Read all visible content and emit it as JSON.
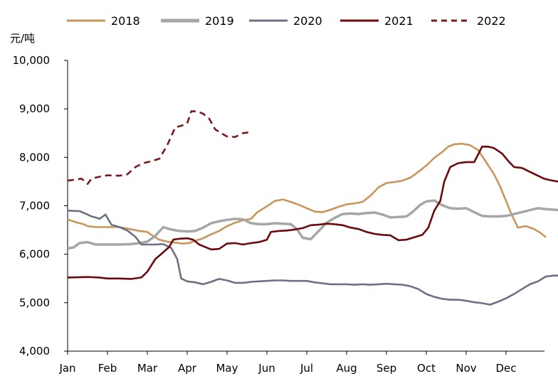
{
  "chart_data": {
    "type": "line",
    "unit_label": "元/吨",
    "x_ticks": [
      "Jan",
      "Feb",
      "Mar",
      "Apr",
      "May",
      "Jun",
      "Jul",
      "Aug",
      "Sep",
      "Oct",
      "Nov",
      "Dec"
    ],
    "y_ticks": [
      "4,000",
      "5,000",
      "6,000",
      "7,000",
      "8,000",
      "9,000",
      "10,000"
    ],
    "ylim": [
      4000,
      10000
    ],
    "xlim": [
      0,
      12
    ],
    "legend_position": "top",
    "grid": false,
    "series": [
      {
        "name": "2018",
        "color": "#C8955A",
        "dashed": false,
        "points": [
          [
            0,
            6720
          ],
          [
            0.25,
            6650
          ],
          [
            0.4,
            6620
          ],
          [
            0.5,
            6580
          ],
          [
            0.7,
            6560
          ],
          [
            1.0,
            6560
          ],
          [
            1.3,
            6560
          ],
          [
            1.55,
            6520
          ],
          [
            1.8,
            6480
          ],
          [
            2.0,
            6460
          ],
          [
            2.1,
            6400
          ],
          [
            2.3,
            6300
          ],
          [
            2.5,
            6260
          ],
          [
            2.7,
            6240
          ],
          [
            2.9,
            6220
          ],
          [
            3.05,
            6230
          ],
          [
            3.2,
            6280
          ],
          [
            3.4,
            6330
          ],
          [
            3.6,
            6410
          ],
          [
            3.8,
            6480
          ],
          [
            4.0,
            6580
          ],
          [
            4.2,
            6650
          ],
          [
            4.4,
            6700
          ],
          [
            4.6,
            6730
          ],
          [
            4.75,
            6860
          ],
          [
            5.0,
            6990
          ],
          [
            5.2,
            7100
          ],
          [
            5.4,
            7130
          ],
          [
            5.6,
            7080
          ],
          [
            5.8,
            7020
          ],
          [
            6.0,
            6950
          ],
          [
            6.2,
            6880
          ],
          [
            6.4,
            6870
          ],
          [
            6.6,
            6920
          ],
          [
            6.8,
            6980
          ],
          [
            7.0,
            7030
          ],
          [
            7.2,
            7050
          ],
          [
            7.4,
            7080
          ],
          [
            7.6,
            7210
          ],
          [
            7.8,
            7380
          ],
          [
            8.0,
            7470
          ],
          [
            8.2,
            7490
          ],
          [
            8.4,
            7520
          ],
          [
            8.6,
            7580
          ],
          [
            8.8,
            7700
          ],
          [
            9.0,
            7830
          ],
          [
            9.2,
            7990
          ],
          [
            9.4,
            8110
          ],
          [
            9.55,
            8220
          ],
          [
            9.7,
            8270
          ],
          [
            9.9,
            8280
          ],
          [
            10.1,
            8250
          ],
          [
            10.3,
            8150
          ],
          [
            10.5,
            7900
          ],
          [
            10.7,
            7650
          ],
          [
            10.85,
            7400
          ],
          [
            11.0,
            7100
          ],
          [
            11.15,
            6800
          ],
          [
            11.3,
            6550
          ],
          [
            11.5,
            6580
          ],
          [
            11.7,
            6520
          ],
          [
            11.85,
            6450
          ],
          [
            12.0,
            6350
          ]
        ]
      },
      {
        "name": "2019",
        "color": "#A6A6A6",
        "dashed": false,
        "points": [
          [
            0,
            6120
          ],
          [
            0.15,
            6140
          ],
          [
            0.3,
            6230
          ],
          [
            0.5,
            6250
          ],
          [
            0.7,
            6200
          ],
          [
            1.0,
            6200
          ],
          [
            1.3,
            6200
          ],
          [
            1.6,
            6210
          ],
          [
            1.8,
            6230
          ],
          [
            2.0,
            6260
          ],
          [
            2.2,
            6380
          ],
          [
            2.4,
            6560
          ],
          [
            2.6,
            6510
          ],
          [
            2.8,
            6480
          ],
          [
            3.0,
            6470
          ],
          [
            3.2,
            6480
          ],
          [
            3.4,
            6550
          ],
          [
            3.6,
            6640
          ],
          [
            3.8,
            6680
          ],
          [
            4.0,
            6710
          ],
          [
            4.2,
            6730
          ],
          [
            4.4,
            6720
          ],
          [
            4.6,
            6640
          ],
          [
            4.8,
            6620
          ],
          [
            5.0,
            6620
          ],
          [
            5.2,
            6640
          ],
          [
            5.4,
            6630
          ],
          [
            5.6,
            6620
          ],
          [
            5.75,
            6520
          ],
          [
            5.9,
            6340
          ],
          [
            6.1,
            6310
          ],
          [
            6.3,
            6480
          ],
          [
            6.5,
            6650
          ],
          [
            6.7,
            6750
          ],
          [
            6.9,
            6830
          ],
          [
            7.1,
            6840
          ],
          [
            7.3,
            6830
          ],
          [
            7.5,
            6850
          ],
          [
            7.7,
            6860
          ],
          [
            7.9,
            6820
          ],
          [
            8.1,
            6760
          ],
          [
            8.3,
            6770
          ],
          [
            8.5,
            6780
          ],
          [
            8.65,
            6870
          ],
          [
            8.85,
            7020
          ],
          [
            9.0,
            7090
          ],
          [
            9.2,
            7110
          ],
          [
            9.4,
            7010
          ],
          [
            9.6,
            6950
          ],
          [
            9.8,
            6940
          ],
          [
            10.0,
            6950
          ],
          [
            10.2,
            6870
          ],
          [
            10.4,
            6790
          ],
          [
            10.6,
            6780
          ],
          [
            10.8,
            6780
          ],
          [
            11.0,
            6790
          ],
          [
            11.2,
            6830
          ],
          [
            11.4,
            6870
          ],
          [
            11.6,
            6910
          ],
          [
            11.8,
            6950
          ],
          [
            12.0,
            6930
          ],
          [
            12.2,
            6920
          ],
          [
            12.5,
            6900
          ]
        ]
      },
      {
        "name": "2020",
        "color": "#6B7283",
        "dashed": false,
        "points": [
          [
            0,
            6900
          ],
          [
            0.3,
            6890
          ],
          [
            0.5,
            6820
          ],
          [
            0.6,
            6780
          ],
          [
            0.7,
            6760
          ],
          [
            0.8,
            6730
          ],
          [
            0.95,
            6820
          ],
          [
            1.1,
            6610
          ],
          [
            1.3,
            6560
          ],
          [
            1.5,
            6490
          ],
          [
            1.7,
            6360
          ],
          [
            1.85,
            6200
          ],
          [
            2.0,
            6200
          ],
          [
            2.2,
            6200
          ],
          [
            2.4,
            6210
          ],
          [
            2.6,
            6130
          ],
          [
            2.75,
            5900
          ],
          [
            2.85,
            5500
          ],
          [
            3.0,
            5440
          ],
          [
            3.2,
            5420
          ],
          [
            3.4,
            5380
          ],
          [
            3.6,
            5430
          ],
          [
            3.8,
            5490
          ],
          [
            4.0,
            5460
          ],
          [
            4.2,
            5410
          ],
          [
            4.4,
            5410
          ],
          [
            4.6,
            5430
          ],
          [
            4.8,
            5440
          ],
          [
            5.0,
            5450
          ],
          [
            5.2,
            5460
          ],
          [
            5.4,
            5460
          ],
          [
            5.6,
            5450
          ],
          [
            5.8,
            5450
          ],
          [
            6.0,
            5450
          ],
          [
            6.2,
            5420
          ],
          [
            6.4,
            5400
          ],
          [
            6.6,
            5380
          ],
          [
            6.8,
            5380
          ],
          [
            7.0,
            5380
          ],
          [
            7.2,
            5370
          ],
          [
            7.4,
            5380
          ],
          [
            7.6,
            5370
          ],
          [
            7.8,
            5380
          ],
          [
            8.0,
            5390
          ],
          [
            8.2,
            5380
          ],
          [
            8.4,
            5370
          ],
          [
            8.6,
            5340
          ],
          [
            8.8,
            5280
          ],
          [
            9.0,
            5180
          ],
          [
            9.2,
            5120
          ],
          [
            9.4,
            5080
          ],
          [
            9.6,
            5060
          ],
          [
            9.8,
            5060
          ],
          [
            10.0,
            5040
          ],
          [
            10.2,
            5010
          ],
          [
            10.4,
            4990
          ],
          [
            10.6,
            4960
          ],
          [
            10.8,
            5020
          ],
          [
            11.0,
            5090
          ],
          [
            11.2,
            5180
          ],
          [
            11.4,
            5280
          ],
          [
            11.6,
            5380
          ],
          [
            11.8,
            5440
          ],
          [
            12.0,
            5540
          ],
          [
            12.2,
            5560
          ],
          [
            12.4,
            5560
          ],
          [
            12.5,
            5550
          ]
        ]
      },
      {
        "name": "2021",
        "color": "#6B0A0E",
        "dashed": false,
        "points": [
          [
            0,
            5520
          ],
          [
            0.5,
            5530
          ],
          [
            0.8,
            5520
          ],
          [
            1.0,
            5500
          ],
          [
            1.3,
            5500
          ],
          [
            1.6,
            5490
          ],
          [
            1.85,
            5520
          ],
          [
            2.0,
            5640
          ],
          [
            2.2,
            5900
          ],
          [
            2.4,
            6040
          ],
          [
            2.55,
            6150
          ],
          [
            2.65,
            6300
          ],
          [
            2.8,
            6320
          ],
          [
            3.0,
            6330
          ],
          [
            3.15,
            6300
          ],
          [
            3.3,
            6200
          ],
          [
            3.45,
            6150
          ],
          [
            3.6,
            6100
          ],
          [
            3.8,
            6110
          ],
          [
            4.0,
            6220
          ],
          [
            4.2,
            6230
          ],
          [
            4.4,
            6200
          ],
          [
            4.6,
            6230
          ],
          [
            4.8,
            6250
          ],
          [
            5.0,
            6300
          ],
          [
            5.1,
            6460
          ],
          [
            5.3,
            6480
          ],
          [
            5.5,
            6490
          ],
          [
            5.7,
            6510
          ],
          [
            5.9,
            6540
          ],
          [
            6.1,
            6600
          ],
          [
            6.3,
            6610
          ],
          [
            6.5,
            6630
          ],
          [
            6.7,
            6620
          ],
          [
            6.9,
            6600
          ],
          [
            7.1,
            6550
          ],
          [
            7.3,
            6520
          ],
          [
            7.5,
            6460
          ],
          [
            7.7,
            6420
          ],
          [
            7.9,
            6400
          ],
          [
            8.1,
            6390
          ],
          [
            8.3,
            6290
          ],
          [
            8.5,
            6300
          ],
          [
            8.7,
            6350
          ],
          [
            8.9,
            6400
          ],
          [
            9.05,
            6550
          ],
          [
            9.2,
            6900
          ],
          [
            9.35,
            7100
          ],
          [
            9.45,
            7500
          ],
          [
            9.6,
            7800
          ],
          [
            9.8,
            7880
          ],
          [
            10.0,
            7900
          ],
          [
            10.2,
            7900
          ],
          [
            10.4,
            8220
          ],
          [
            10.55,
            8220
          ],
          [
            10.7,
            8190
          ],
          [
            10.9,
            8080
          ],
          [
            11.05,
            7930
          ],
          [
            11.2,
            7800
          ],
          [
            11.4,
            7780
          ],
          [
            11.6,
            7700
          ],
          [
            11.8,
            7620
          ],
          [
            11.95,
            7560
          ],
          [
            12.1,
            7530
          ],
          [
            12.3,
            7500
          ],
          [
            12.5,
            7490
          ]
        ]
      },
      {
        "name": "2022",
        "color": "#7B1A1E",
        "dashed": true,
        "points": [
          [
            0,
            7520
          ],
          [
            0.2,
            7540
          ],
          [
            0.35,
            7560
          ],
          [
            0.5,
            7450
          ],
          [
            0.6,
            7560
          ],
          [
            0.8,
            7600
          ],
          [
            1.0,
            7630
          ],
          [
            1.3,
            7620
          ],
          [
            1.5,
            7650
          ],
          [
            1.7,
            7800
          ],
          [
            1.9,
            7880
          ],
          [
            2.1,
            7920
          ],
          [
            2.3,
            7970
          ],
          [
            2.5,
            8250
          ],
          [
            2.7,
            8620
          ],
          [
            2.85,
            8650
          ],
          [
            3.0,
            8700
          ],
          [
            3.1,
            8950
          ],
          [
            3.25,
            8950
          ],
          [
            3.4,
            8900
          ],
          [
            3.55,
            8800
          ],
          [
            3.7,
            8580
          ],
          [
            3.85,
            8500
          ],
          [
            4.0,
            8430
          ],
          [
            4.2,
            8420
          ],
          [
            4.4,
            8500
          ],
          [
            4.5,
            8510
          ],
          [
            4.6,
            8540
          ]
        ]
      }
    ]
  }
}
